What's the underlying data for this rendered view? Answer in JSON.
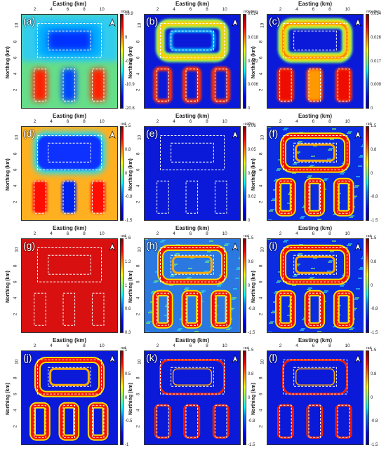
{
  "figure": {
    "x_axis_title": "Easting (km)",
    "y_axis_title": "Northing (km)",
    "x_ticks": [
      "2",
      "4",
      "6",
      "8",
      "10"
    ],
    "y_ticks": [
      "10",
      "8",
      "6",
      "4",
      "2"
    ],
    "north_arrow_icon": "north-arrow-icon",
    "colormap": [
      "#00008f",
      "#0000ff",
      "#007fff",
      "#00ffff",
      "#7fff7f",
      "#ffff00",
      "#ff7f00",
      "#ff0000",
      "#7f0000"
    ],
    "outline_color": "#ffffff",
    "panels": [
      {
        "id": "a",
        "label": "(a)",
        "unit": "mGal",
        "ticks": [
          "18.9",
          "9",
          "-0.9",
          "-10.9",
          "-20.8"
        ],
        "style": "gravity"
      },
      {
        "id": "b",
        "label": "(b)",
        "unit": "mGal/km",
        "ticks": [
          "0.024",
          "0.018",
          "0.012",
          "0.006",
          "0"
        ],
        "style": "edge_soft"
      },
      {
        "id": "c",
        "label": "(c)",
        "unit": "mGal/km",
        "ticks": [
          "0.034",
          "0.026",
          "0.017",
          "0.009",
          "0"
        ],
        "style": "amp"
      },
      {
        "id": "d",
        "label": "(d)",
        "unit": "rad",
        "ticks": [
          "1.5",
          "0.8",
          "0",
          "-0.8",
          "-1.5"
        ],
        "style": "tilt"
      },
      {
        "id": "e",
        "label": "(e)",
        "unit": "rad/km",
        "ticks": [
          "0.06",
          "0.05",
          "0.03",
          "0.02",
          "0"
        ],
        "style": "dark"
      },
      {
        "id": "f",
        "label": "(f)",
        "unit": "rad",
        "ticks": [
          "1.5",
          "0.8",
          "0",
          "-0.8",
          "-1.5"
        ],
        "style": "rings"
      },
      {
        "id": "g",
        "label": "(g)",
        "unit": "rad",
        "ticks": [
          "1.6",
          "1.3",
          "1",
          "0.6",
          "0.3"
        ],
        "style": "red"
      },
      {
        "id": "h",
        "label": "(h)",
        "unit": "rad",
        "ticks": [
          "1.5",
          "0.8",
          "0",
          "-0.8",
          "-1.5"
        ],
        "style": "noisy"
      },
      {
        "id": "i",
        "label": "(i)",
        "unit": "rad",
        "ticks": [
          "1.5",
          "0.8",
          "0",
          "-0.8",
          "-1.5"
        ],
        "style": "rings"
      },
      {
        "id": "j",
        "label": "(j)",
        "unit": "rad",
        "ticks": [
          "1",
          "0.5",
          "0",
          "-0.5",
          "-1"
        ],
        "style": "sharp"
      },
      {
        "id": "k",
        "label": "(k)",
        "unit": "rad",
        "ticks": [
          "1.5",
          "0.8",
          "0",
          "-0.8",
          "-1.5"
        ],
        "style": "thin"
      },
      {
        "id": "l",
        "label": "(l)",
        "unit": "rad",
        "ticks": [
          "1.5",
          "0.8",
          "0",
          "-0.8",
          "-1.5"
        ],
        "style": "thin"
      }
    ]
  }
}
